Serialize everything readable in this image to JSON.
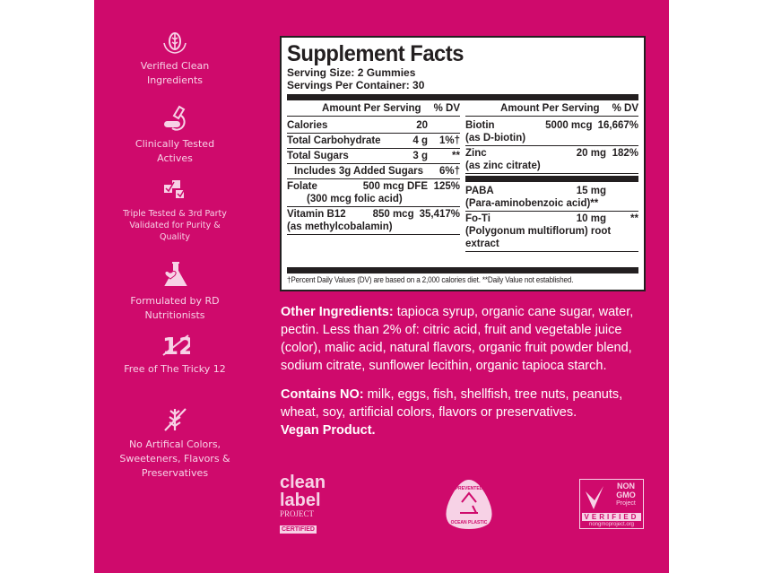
{
  "features": [
    {
      "icon": "leaf-hands-icon",
      "label": "Verified Clean Ingredients"
    },
    {
      "icon": "microscope-pill-icon",
      "label": "Clinically Tested Actives"
    },
    {
      "icon": "triple-check-icon",
      "label": "Triple Tested & 3rd Party Validated for Purity & Quality"
    },
    {
      "icon": "flask-heart-icon",
      "label": "Formulated by RD Nutritionists"
    },
    {
      "icon": "crossed-12-icon",
      "label": "Free of The Tricky 12"
    },
    {
      "icon": "crossed-plant-icon",
      "label": "No Artifical Colors, Sweeteners, Flavors & Preservatives"
    }
  ],
  "facts": {
    "title": "Supplement Facts",
    "serving_size": "Serving Size: 2 Gummies",
    "servings_per_container": "Servings Per Container: 30",
    "amount_header": "Amount Per Serving",
    "dv_header": "% DV",
    "left": [
      {
        "name": "Calories",
        "amount": "20",
        "dv": ""
      },
      {
        "name": "Total Carbohydrate",
        "amount": "4 g",
        "dv": "1%†"
      },
      {
        "name": "Total Sugars",
        "amount": "3 g",
        "dv": "**"
      },
      {
        "name": "Includes 3g Added Sugars",
        "amount": "",
        "dv": "6%†"
      },
      {
        "name": "Folate",
        "amount": "500 mcg DFE",
        "dv": "125%",
        "sub": "(300 mcg folic acid)"
      },
      {
        "name": "Vitamin B12",
        "amount": "850 mcg",
        "dv": "35,417%",
        "sub": "(as methylcobalamin)"
      }
    ],
    "right": [
      {
        "name": "Biotin",
        "amount": "5000 mcg",
        "dv": "16,667%",
        "sub": "(as D-biotin)"
      },
      {
        "name": "Zinc",
        "amount": "20 mg",
        "dv": "182%",
        "sub": "(as zinc citrate)"
      },
      {
        "name": "PABA",
        "amount": "15 mg",
        "dv": "",
        "sub": "(Para-aminobenzoic acid)**"
      },
      {
        "name": "Fo-Ti",
        "amount": "10 mg",
        "dv": "**",
        "sub": "(Polygonum multiflorum) root extract"
      }
    ],
    "footnote": "†Percent Daily Values (DV) are based on a 2,000 calories diet. **Daily Value not established."
  },
  "other_ingredients": {
    "label": "Other Ingredients:",
    "text": " tapioca syrup, organic cane sugar, water, pectin. Less than 2% of: citric acid, fruit and vegetable juice (color), malic acid, natural flavors, organic fruit powder blend, sodium citrate, sunflower lecithin, organic tapioca starch."
  },
  "contains": {
    "label": "Contains NO:",
    "text": " milk, eggs, fish, shellfish, tree nuts, peanuts, wheat, soy, artificial colors, flavors or preservatives.",
    "vegan": "Vegan Product."
  },
  "badges": {
    "clean_label": [
      "clean",
      "label",
      "PROJECT",
      "CERTIFIED"
    ],
    "ocean": [
      "PREVENTED",
      "OCEAN PLASTIC"
    ],
    "nongmo": [
      "NON",
      "GMO",
      "Project",
      "VERIFIED",
      "nongmoproject.org"
    ]
  },
  "colors": {
    "background": "#cf0a6c",
    "accent_text": "#f7d2e6",
    "ink": "#231f20"
  }
}
